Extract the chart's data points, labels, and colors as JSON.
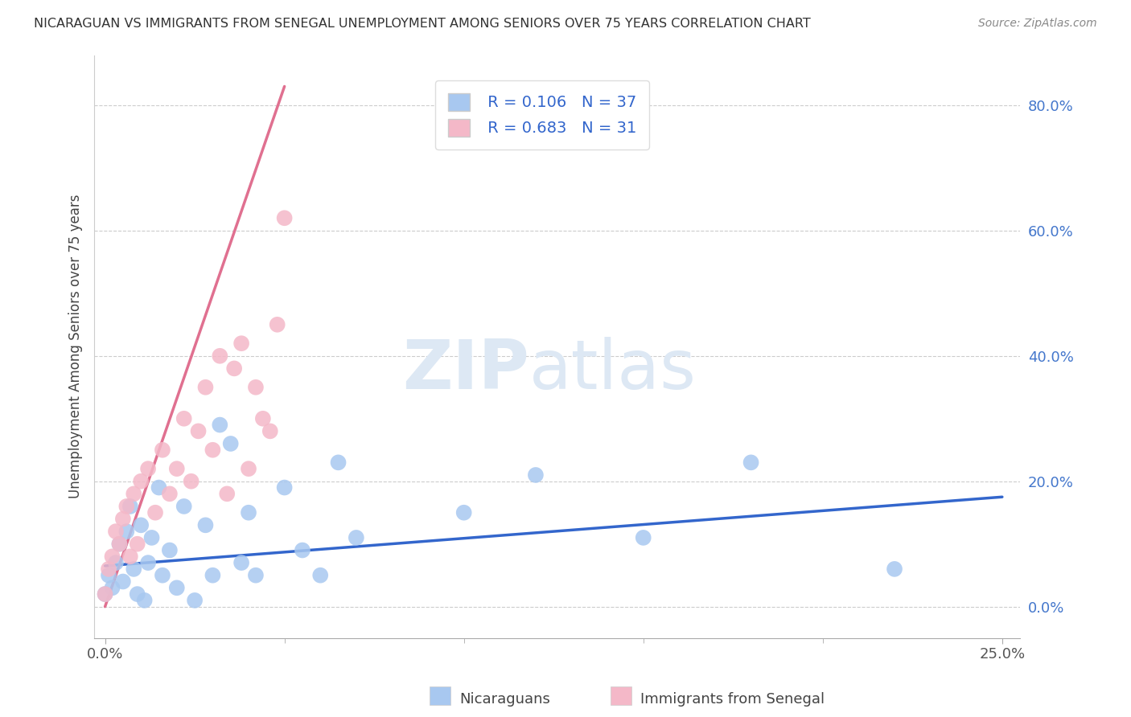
{
  "title": "NICARAGUAN VS IMMIGRANTS FROM SENEGAL UNEMPLOYMENT AMONG SENIORS OVER 75 YEARS CORRELATION CHART",
  "source": "Source: ZipAtlas.com",
  "ylabel": "Unemployment Among Seniors over 75 years",
  "xlim": [
    -0.003,
    0.255
  ],
  "ylim": [
    -0.05,
    0.88
  ],
  "xtick_positions": [
    0.0,
    0.25
  ],
  "xtick_labels": [
    "0.0%",
    "25.0%"
  ],
  "ytick_positions": [
    0.0,
    0.2,
    0.4,
    0.6,
    0.8
  ],
  "ytick_labels": [
    "0.0%",
    "20.0%",
    "40.0%",
    "60.0%",
    "80.0%"
  ],
  "nicaraguan_color": "#a8c8f0",
  "senegal_color": "#f4b8c8",
  "trend_blue": "#3366cc",
  "trend_pink": "#e07090",
  "r_nicaraguan": 0.106,
  "n_nicaraguan": 37,
  "r_senegal": 0.683,
  "n_senegal": 31,
  "watermark_zip": "ZIP",
  "watermark_atlas": "atlas",
  "background_color": "#ffffff",
  "legend_label_1": "Nicaraguans",
  "legend_label_2": "Immigrants from Senegal",
  "nicaraguan_x": [
    0.0,
    0.001,
    0.002,
    0.003,
    0.004,
    0.005,
    0.006,
    0.007,
    0.008,
    0.009,
    0.01,
    0.011,
    0.012,
    0.013,
    0.015,
    0.016,
    0.018,
    0.02,
    0.022,
    0.025,
    0.028,
    0.03,
    0.032,
    0.035,
    0.038,
    0.04,
    0.042,
    0.05,
    0.055,
    0.06,
    0.065,
    0.07,
    0.1,
    0.12,
    0.15,
    0.18,
    0.22
  ],
  "nicaraguan_y": [
    0.02,
    0.05,
    0.03,
    0.07,
    0.1,
    0.04,
    0.12,
    0.16,
    0.06,
    0.02,
    0.13,
    0.01,
    0.07,
    0.11,
    0.19,
    0.05,
    0.09,
    0.03,
    0.16,
    0.01,
    0.13,
    0.05,
    0.29,
    0.26,
    0.07,
    0.15,
    0.05,
    0.19,
    0.09,
    0.05,
    0.23,
    0.11,
    0.15,
    0.21,
    0.11,
    0.23,
    0.06
  ],
  "senegal_x": [
    0.0,
    0.001,
    0.002,
    0.003,
    0.004,
    0.005,
    0.006,
    0.007,
    0.008,
    0.009,
    0.01,
    0.012,
    0.014,
    0.016,
    0.018,
    0.02,
    0.022,
    0.024,
    0.026,
    0.028,
    0.03,
    0.032,
    0.034,
    0.036,
    0.038,
    0.04,
    0.042,
    0.044,
    0.046,
    0.048,
    0.05
  ],
  "senegal_y": [
    0.02,
    0.06,
    0.08,
    0.12,
    0.1,
    0.14,
    0.16,
    0.08,
    0.18,
    0.1,
    0.2,
    0.22,
    0.15,
    0.25,
    0.18,
    0.22,
    0.3,
    0.2,
    0.28,
    0.35,
    0.25,
    0.4,
    0.18,
    0.38,
    0.42,
    0.22,
    0.35,
    0.3,
    0.28,
    0.45,
    0.62
  ],
  "senegal_trend_x0": 0.0,
  "senegal_trend_y0": 0.0,
  "senegal_trend_x1": 0.05,
  "senegal_trend_y1": 0.83,
  "nicaraguan_trend_x0": 0.0,
  "nicaraguan_trend_y0": 0.065,
  "nicaraguan_trend_x1": 0.25,
  "nicaraguan_trend_y1": 0.175
}
